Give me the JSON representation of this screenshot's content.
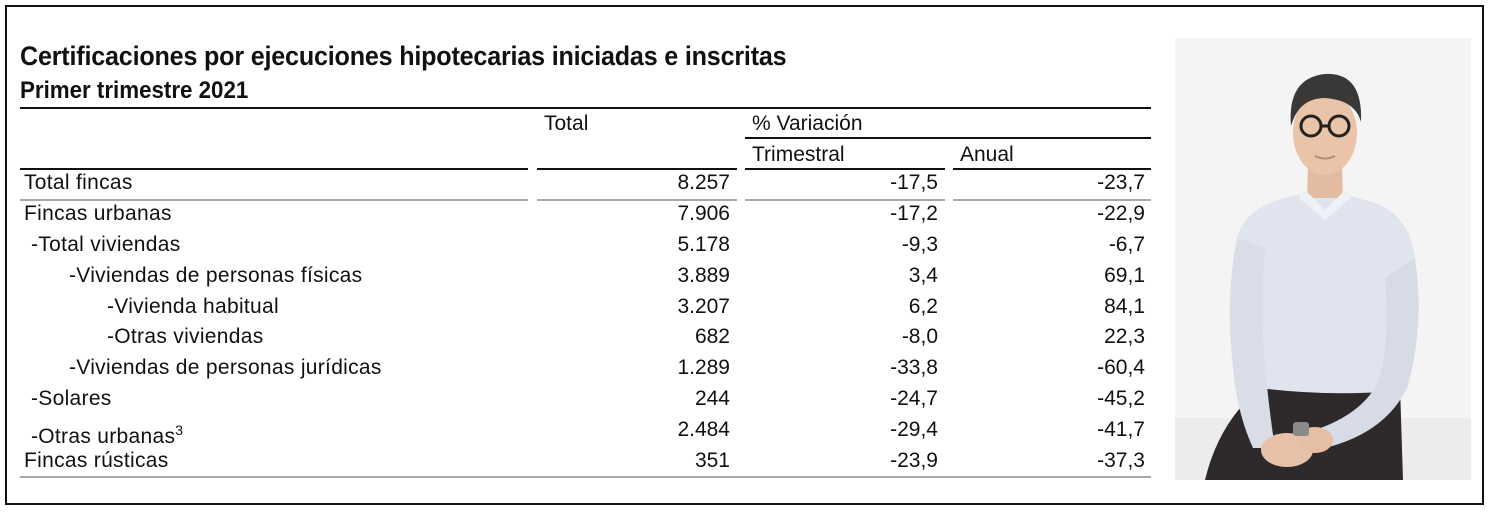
{
  "title": "Certificaciones por ejecuciones hipotecarias iniciadas e inscritas",
  "subtitle": "Primer trimestre 2021",
  "headers": {
    "total": "Total",
    "variacion": "% Variación",
    "trimestral": "Trimestral",
    "anual": "Anual"
  },
  "rows": [
    {
      "label": "Total fincas",
      "level": 0,
      "total": "8.257",
      "trimestral": "-17,5",
      "anual": "-23,7"
    },
    {
      "label": "Fincas urbanas",
      "level": 0,
      "total": "7.906",
      "trimestral": "-17,2",
      "anual": "-22,9"
    },
    {
      "label": "-Total viviendas",
      "level": 1,
      "total": "5.178",
      "trimestral": "-9,3",
      "anual": "-6,7"
    },
    {
      "label": "-Viviendas de personas físicas",
      "level": 2,
      "total": "3.889",
      "trimestral": "3,4",
      "anual": "69,1"
    },
    {
      "label": "-Vivienda habitual",
      "level": 3,
      "total": "3.207",
      "trimestral": "6,2",
      "anual": "84,1"
    },
    {
      "label": "-Otras viviendas",
      "level": 3,
      "total": "682",
      "trimestral": "-8,0",
      "anual": "22,3"
    },
    {
      "label": "-Viviendas de personas jurídicas",
      "level": 2,
      "total": "1.289",
      "trimestral": "-33,8",
      "anual": "-60,4"
    },
    {
      "label": "-Solares",
      "level": 1,
      "total": "244",
      "trimestral": "-24,7",
      "anual": "-45,2"
    },
    {
      "label": "-Otras urbanas",
      "footnote": "3",
      "level": 1,
      "total": "2.484",
      "trimestral": "-29,4",
      "anual": "-41,7"
    },
    {
      "label": "Fincas rústicas",
      "level": 0,
      "total": "351",
      "trimestral": "-23,9",
      "anual": "-37,3"
    }
  ]
}
